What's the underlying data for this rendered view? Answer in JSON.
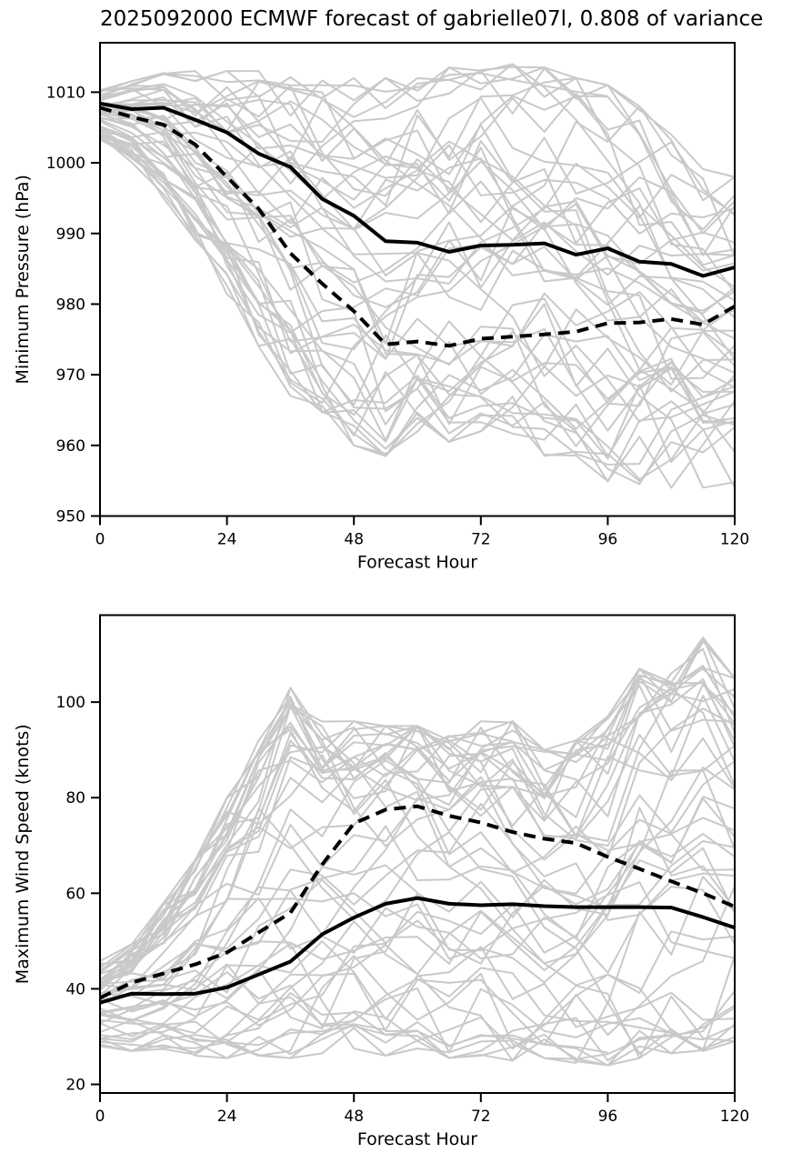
{
  "title": "2025092000 ECMWF forecast of gabrielle07l, 0.808 of variance",
  "colors": {
    "mean_line": "#000000",
    "ensemble_member_line": "#c9c9c9",
    "background": "#ffffff",
    "text": "#000000"
  },
  "ensemble": {
    "n_members": 48,
    "seed": 42,
    "truncated_member": {
      "ends_at_hour": 96
    }
  },
  "chart_data": [
    {
      "type": "line",
      "title": "",
      "xlabel": "Forecast Hour",
      "ylabel": "Minimum Pressure (hPa)",
      "x": [
        0,
        6,
        12,
        18,
        24,
        30,
        36,
        42,
        48,
        54,
        60,
        66,
        72,
        78,
        84,
        90,
        96,
        102,
        108,
        114,
        120
      ],
      "xticks": [
        0,
        24,
        48,
        72,
        96,
        120
      ],
      "yticks": [
        950,
        960,
        970,
        980,
        990,
        1000,
        1010
      ],
      "xlim": [
        0,
        120
      ],
      "ylim": [
        950,
        1017
      ],
      "grid": false,
      "legend": "none",
      "series": [
        {
          "name": "solid",
          "style": "solid",
          "values": [
            1008.4,
            1007.6,
            1007.8,
            1006.1,
            1004.3,
            1001.3,
            999.4,
            994.9,
            992.5,
            988.9,
            988.7,
            987.4,
            988.3,
            988.4,
            988.6,
            987.0,
            987.9,
            986.0,
            985.7,
            984.0,
            985.2
          ]
        },
        {
          "name": "dashed",
          "style": "dashed",
          "values": [
            1007.8,
            1006.5,
            1005.4,
            1002.6,
            998.0,
            993.5,
            987.2,
            982.9,
            979.0,
            974.3,
            974.7,
            974.1,
            975.1,
            975.4,
            975.7,
            976.1,
            977.3,
            977.4,
            977.9,
            977.1,
            979.7
          ]
        }
      ],
      "ensemble_envelope": {
        "min": [
          1003,
          1000,
          995,
          988,
          980.5,
          974,
          967,
          962,
          960,
          958.5,
          961.5,
          960.5,
          962,
          961,
          958.5,
          956.5,
          954.5,
          954.5,
          954,
          952.5,
          954
        ],
        "max": [
          1010.5,
          1012,
          1013,
          1013,
          1013,
          1013,
          1013,
          1012.5,
          1012,
          1012,
          1013,
          1013.5,
          1014,
          1014,
          1013.5,
          1012,
          1011,
          1008,
          1004,
          1001,
          998
        ]
      },
      "truncated_member_bias": 0.93
    },
    {
      "type": "line",
      "title": "",
      "xlabel": "Forecast Hour",
      "ylabel": "Maximum Wind Speed (knots)",
      "x": [
        0,
        6,
        12,
        18,
        24,
        30,
        36,
        42,
        48,
        54,
        60,
        66,
        72,
        78,
        84,
        90,
        96,
        102,
        108,
        114,
        120
      ],
      "xticks": [
        0,
        24,
        48,
        72,
        96,
        120
      ],
      "yticks": [
        20,
        40,
        60,
        80,
        100
      ],
      "xlim": [
        0,
        120
      ],
      "ylim": [
        18.2,
        118.2
      ],
      "grid": false,
      "legend": "none",
      "series": [
        {
          "name": "solid",
          "style": "solid",
          "values": [
            37.1,
            39.0,
            38.9,
            39.0,
            40.3,
            43.0,
            45.7,
            51.4,
            54.9,
            57.8,
            59.0,
            57.8,
            57.5,
            57.7,
            57.3,
            57.1,
            57.1,
            57.1,
            57.0,
            55.0,
            52.8
          ]
        },
        {
          "name": "dashed",
          "style": "dashed",
          "values": [
            38.1,
            41.3,
            43.2,
            45.1,
            47.6,
            51.8,
            55.9,
            66.0,
            74.6,
            77.5,
            78.2,
            76.2,
            74.8,
            72.8,
            71.4,
            70.5,
            67.6,
            65.1,
            62.5,
            60.0,
            57.2
          ]
        }
      ],
      "ensemble_envelope": {
        "min": [
          28,
          27,
          26.5,
          26,
          25.5,
          26,
          25.5,
          26.5,
          27.5,
          26,
          27.5,
          25.5,
          26,
          25,
          25.5,
          24.5,
          24,
          25.5,
          26.5,
          27,
          29
        ],
        "max": [
          46,
          50,
          58,
          67,
          80,
          92,
          103,
          98,
          96,
          95,
          95,
          93,
          96,
          96,
          90,
          92,
          97,
          107,
          106,
          113.5,
          105
        ]
      },
      "truncated_member_bias": -0.9
    }
  ]
}
